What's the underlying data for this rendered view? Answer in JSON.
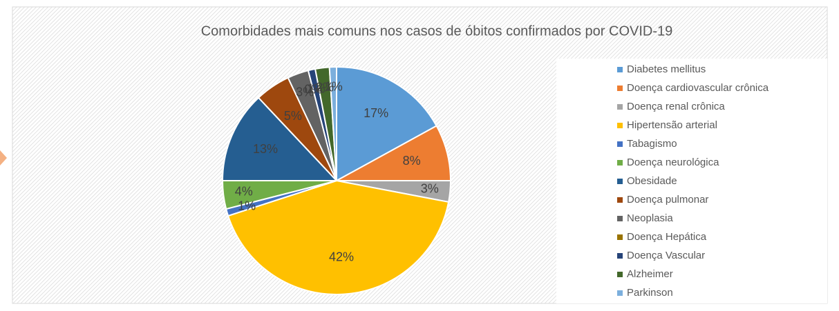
{
  "chart_data": {
    "type": "pie",
    "title": "Comorbidades mais comuns nos casos de óbitos confirmados por COVID-19",
    "categories": [
      "Diabetes mellitus",
      "Doença cardiovascular crônica",
      "Doença renal crônica",
      "Hipertensão arterial",
      "Tabagismo",
      "Doença neurológica",
      "Obesidade",
      "Doença pulmonar",
      "Neoplasia",
      "Doença Hepática",
      "Doença Vascular",
      "Alzheimer",
      "Parkinson"
    ],
    "values": [
      17,
      8,
      3,
      42,
      1,
      4,
      13,
      5,
      3,
      0,
      1,
      2,
      1
    ],
    "value_labels": [
      "17%",
      "8%",
      "3%",
      "42%",
      "1%",
      "4%",
      "13%",
      "5%",
      "3%",
      "0%",
      "1%",
      "2%",
      "1%"
    ],
    "colors": [
      "#5b9bd5",
      "#ed7d31",
      "#a5a5a5",
      "#ffc000",
      "#4472c4",
      "#70ad47",
      "#255e91",
      "#9e480e",
      "#636363",
      "#997300",
      "#264478",
      "#43682b",
      "#7cafdd"
    ],
    "legend": "right"
  }
}
